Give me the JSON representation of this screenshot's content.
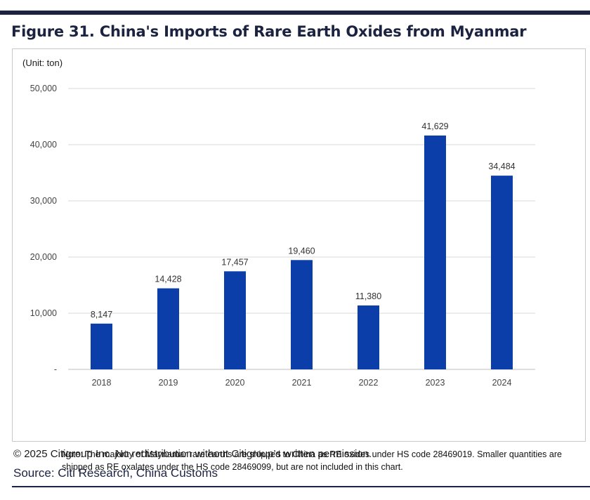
{
  "header": {
    "title": "Figure 31. China's Imports of Rare Earth Oxides from Myanmar"
  },
  "chart_data": {
    "type": "bar",
    "title": "Figure 31. China's Imports of Rare Earth Oxides from Myanmar",
    "unit_label": "(Unit: ton)",
    "xlabel": "",
    "ylabel": "",
    "categories": [
      "2018",
      "2019",
      "2020",
      "2021",
      "2022",
      "2023",
      "2024"
    ],
    "values": [
      8147,
      14428,
      17457,
      19460,
      11380,
      41629,
      34484
    ],
    "data_labels": [
      "8,147",
      "14,428",
      "17,457",
      "19,460",
      "11,380",
      "41,629",
      "34,484"
    ],
    "ylim": [
      0,
      50000
    ],
    "yticks": [
      0,
      10000,
      20000,
      30000,
      40000,
      50000
    ],
    "ytick_labels": [
      "-",
      "10,000",
      "20,000",
      "30,000",
      "40,000",
      "50,000"
    ],
    "grid": true,
    "legend": "none",
    "bar_color": "#0b3ea8"
  },
  "note": "Note: The majority of Maynamar rare earths are shipped to China as RE oxides under HS code 28469019. Smaller quantities are shipped as RE oxalates under the HS code 28469099, but are not included in this chart.",
  "footer": {
    "copyright": "© 2025 Citigroup Inc. No redistribution without Citigroup’s written permission.",
    "source": "Source: Citi Research, China Customs"
  }
}
